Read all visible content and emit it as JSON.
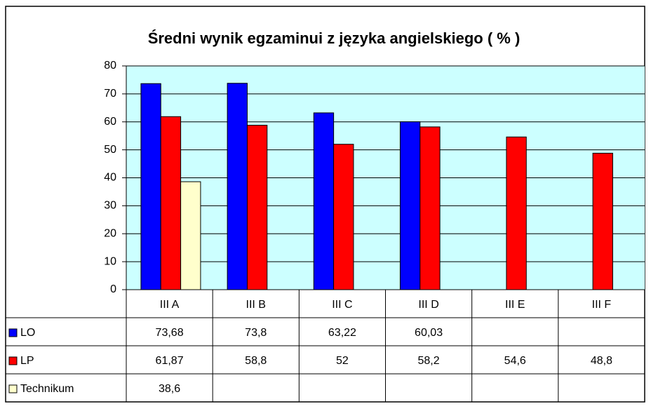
{
  "chart_data": {
    "type": "bar",
    "title": "Średni wynik egzaminui z języka angielskiego ( % )",
    "categories": [
      "III A",
      "III B",
      "III C",
      "III D",
      "III E",
      "III F"
    ],
    "series": [
      {
        "name": "LO",
        "color": "#0000ff",
        "values": [
          73.68,
          73.8,
          63.22,
          60.03,
          null,
          null
        ],
        "value_labels": [
          "73,68",
          "73,8",
          "63,22",
          "60,03",
          null,
          null
        ]
      },
      {
        "name": "LP",
        "color": "#ff0000",
        "values": [
          61.87,
          58.8,
          52,
          58.2,
          54.6,
          48.8
        ],
        "value_labels": [
          "61,87",
          "58,8",
          "52",
          "58,2",
          "54,6",
          "48,8"
        ]
      },
      {
        "name": "Technikum",
        "color": "#ffffcc",
        "values": [
          38.6,
          null,
          null,
          null,
          null,
          null
        ],
        "value_labels": [
          "38,6",
          null,
          null,
          null,
          null,
          null
        ]
      }
    ],
    "ylim": [
      0,
      80
    ],
    "yticks": [
      0,
      10,
      20,
      30,
      40,
      50,
      60,
      70,
      80
    ],
    "grid": true,
    "plot_background": "#ccffff"
  }
}
